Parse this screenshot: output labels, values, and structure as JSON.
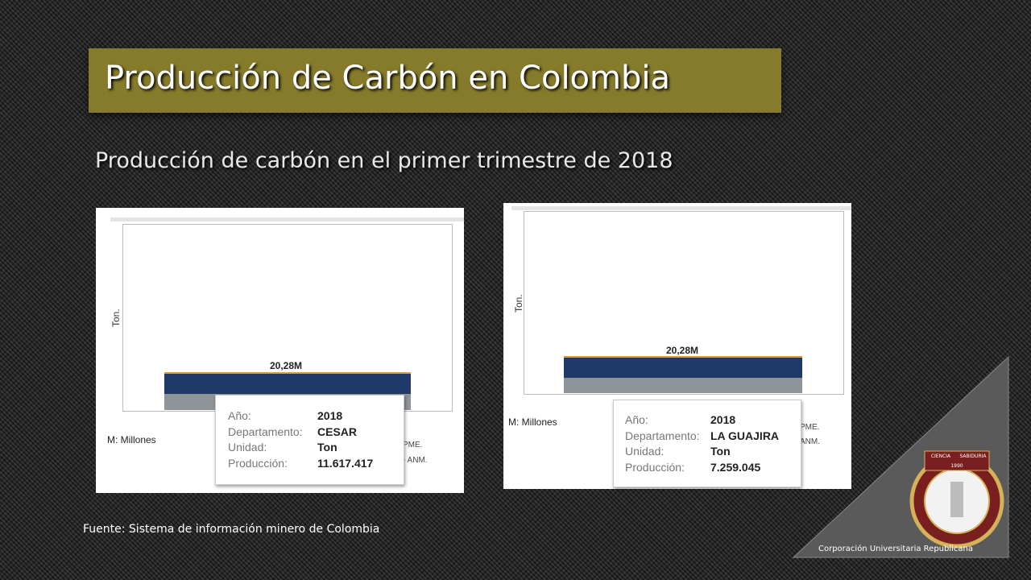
{
  "header": {
    "title": "Producción de Carbón en Colombia",
    "subtitle": "Producción de carbón en el primer trimestre de 2018"
  },
  "panels": [
    {
      "axis_label": "Ton.",
      "total_label": "20,28M",
      "unit_note": "M: Millones",
      "tooltip": [
        [
          "Año:",
          "2018"
        ],
        [
          "Departamento:",
          "CESAR"
        ],
        [
          "Unidad:",
          "Ton"
        ],
        [
          "Producción:",
          "11.617.417"
        ]
      ],
      "source_fragments": [
        "PME.",
        "- ANM."
      ]
    },
    {
      "axis_label": "Ton.",
      "total_label": "20,28M",
      "unit_note": "M: Millones",
      "tooltip": [
        [
          "Año:",
          "2018"
        ],
        [
          "Departamento:",
          "LA GUAJIRA"
        ],
        [
          "Unidad:",
          "Ton"
        ],
        [
          "Producción:",
          "7.259.045"
        ]
      ],
      "source_fragments": [
        "PME.",
        "ANM."
      ]
    }
  ],
  "source": "Fuente: Sistema de información minero de Colombia",
  "logo": {
    "left": "CIENCIA",
    "right": "SABIDURIA",
    "year": "1990"
  },
  "footer": "Corporación Universitaria Republicana"
}
